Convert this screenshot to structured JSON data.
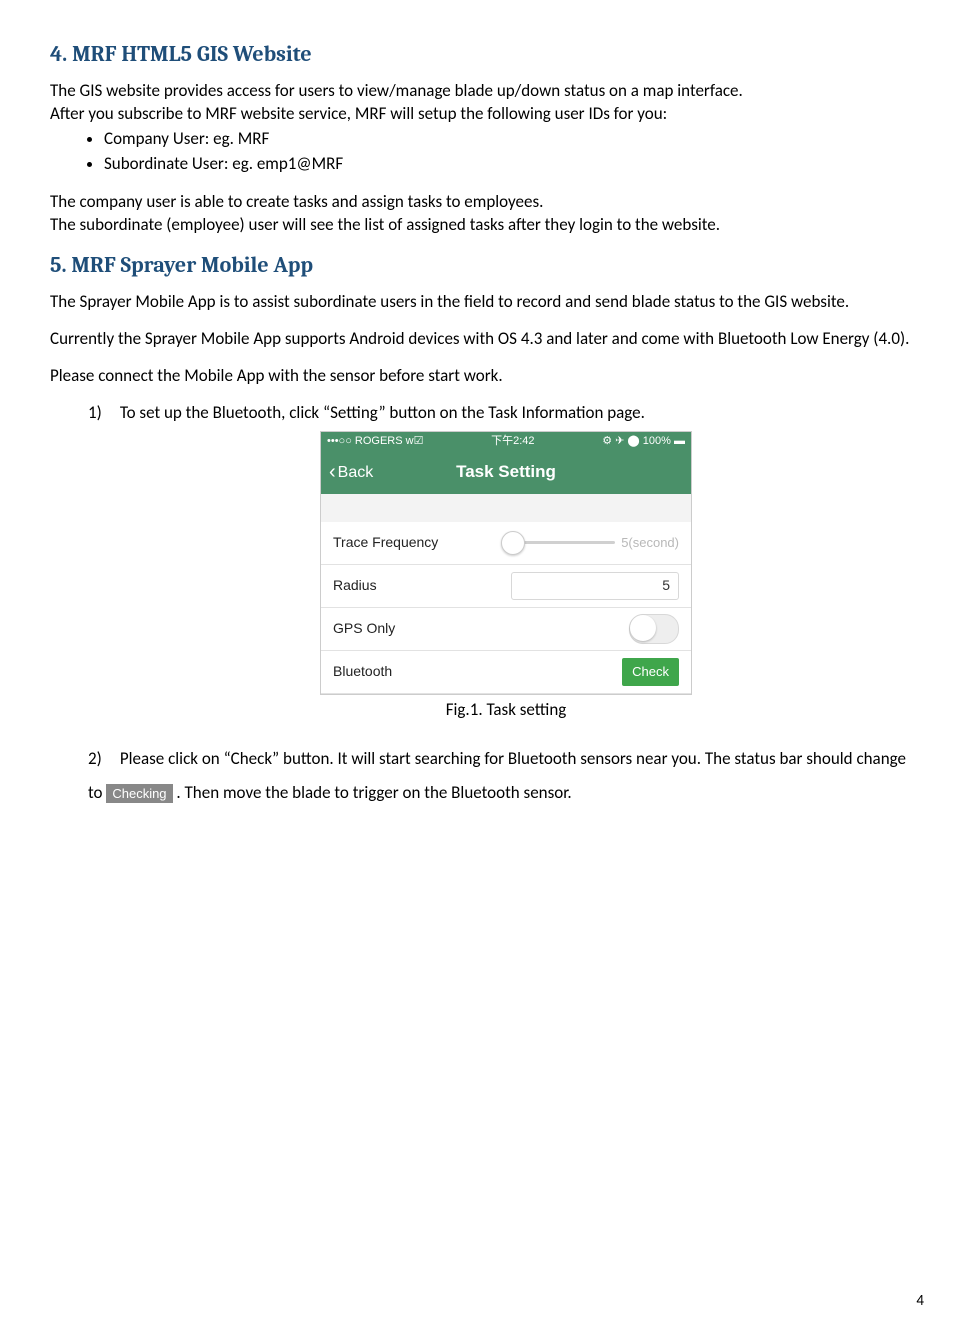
{
  "section4": {
    "title": "4. MRF HTML5 GIS Website",
    "para1a": "The GIS website provides access for users to view/manage blade up/down status on a map interface.",
    "para1b": "After you subscribe to MRF website service, MRF will setup the following user IDs for you:",
    "bullet1": "Company User:   eg. MRF",
    "bullet2": "Subordinate User:  eg. emp1@MRF",
    "para2a": "The company user is able to create tasks and assign tasks to employees.",
    "para2b": "The subordinate (employee) user will see the list of assigned tasks after they login to the website."
  },
  "section5": {
    "title": "5. MRF Sprayer Mobile App",
    "para1": "The Sprayer Mobile App is to assist subordinate users in the field to record and send blade status to the GIS website.",
    "para2": "Currently the Sprayer Mobile App supports Android devices with OS 4.3 and later and come with Bluetooth Low Energy (4.0).",
    "para3": "Please connect the Mobile App with the sensor before start work.",
    "step1_num": "1)",
    "step1_text": "To set up the Bluetooth, click “Setting” button on the Task Information page.",
    "fig1_status_left": "•••○○ ROGERS ᴡ☑",
    "fig1_status_center": "下午2:42",
    "fig1_status_right": "⚙ ✈ ⬤ 100% ▬",
    "fig1_back": "Back",
    "fig1_title": "Task Setting",
    "fig1_row1_label": "Trace Frequency",
    "fig1_row1_value": "5(second)",
    "fig1_row2_label": "Radius",
    "fig1_row2_value": "5",
    "fig1_row3_label": "GPS Only",
    "fig1_row4_label": "Bluetooth",
    "fig1_check": "Check",
    "fig1_caption": "Fig.1. Task setting",
    "step2_num": "2)",
    "step2_text_a": "Please click on “Check” button. It will start searching for Bluetooth sensors near you. The status bar should change to ",
    "step2_chip": "Checking",
    "step2_text_b": ". Then move the blade to trigger on the Bluetooth sensor."
  },
  "page_number": "4",
  "colors": {
    "heading": "#1f4e79",
    "phone_green": "#4a9069",
    "check_green": "#3fa64b",
    "chip_grey": "#888888"
  }
}
